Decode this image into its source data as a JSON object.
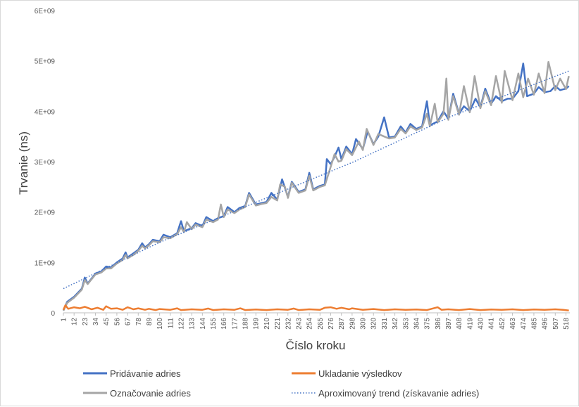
{
  "chart_data": {
    "type": "line",
    "title": "",
    "xlabel": "Číslo kroku",
    "ylabel": "Trvanie (ns)",
    "xlim": [
      1,
      522
    ],
    "ylim": [
      0,
      6000000000
    ],
    "grid": false,
    "legend_position": "bottom",
    "y_ticks": [
      {
        "value": 0,
        "label": "0"
      },
      {
        "value": 1000000000,
        "label": "1E+09"
      },
      {
        "value": 2000000000,
        "label": "2E+09"
      },
      {
        "value": 3000000000,
        "label": "3E+09"
      },
      {
        "value": 4000000000,
        "label": "4E+09"
      },
      {
        "value": 5000000000,
        "label": "5E+09"
      },
      {
        "value": 6000000000,
        "label": "6E+09"
      }
    ],
    "x_ticks": [
      "1",
      "12",
      "23",
      "34",
      "45",
      "56",
      "67",
      "78",
      "89",
      "100",
      "111",
      "122",
      "133",
      "144",
      "155",
      "166",
      "177",
      "188",
      "199",
      "210",
      "221",
      "232",
      "243",
      "254",
      "265",
      "276",
      "287",
      "298",
      "309",
      "320",
      "331",
      "342",
      "353",
      "364",
      "375",
      "386",
      "397",
      "408",
      "419",
      "430",
      "441",
      "452",
      "463",
      "474",
      "485",
      "496",
      "507",
      "518"
    ],
    "series": [
      {
        "name": "Pridávanie adries",
        "color": "#4472C4",
        "style": "solid",
        "points": [
          [
            1,
            50000000
          ],
          [
            5,
            220000000
          ],
          [
            12,
            320000000
          ],
          [
            20,
            480000000
          ],
          [
            23,
            700000000
          ],
          [
            26,
            580000000
          ],
          [
            34,
            780000000
          ],
          [
            40,
            820000000
          ],
          [
            45,
            920000000
          ],
          [
            50,
            900000000
          ],
          [
            56,
            1000000000
          ],
          [
            62,
            1080000000
          ],
          [
            65,
            1200000000
          ],
          [
            67,
            1100000000
          ],
          [
            73,
            1180000000
          ],
          [
            78,
            1250000000
          ],
          [
            82,
            1380000000
          ],
          [
            85,
            1300000000
          ],
          [
            89,
            1360000000
          ],
          [
            93,
            1450000000
          ],
          [
            100,
            1420000000
          ],
          [
            104,
            1550000000
          ],
          [
            111,
            1500000000
          ],
          [
            118,
            1580000000
          ],
          [
            122,
            1820000000
          ],
          [
            125,
            1620000000
          ],
          [
            133,
            1680000000
          ],
          [
            137,
            1780000000
          ],
          [
            144,
            1720000000
          ],
          [
            148,
            1900000000
          ],
          [
            155,
            1820000000
          ],
          [
            160,
            1880000000
          ],
          [
            166,
            1920000000
          ],
          [
            170,
            2100000000
          ],
          [
            177,
            2000000000
          ],
          [
            182,
            2080000000
          ],
          [
            188,
            2120000000
          ],
          [
            192,
            2380000000
          ],
          [
            199,
            2150000000
          ],
          [
            205,
            2180000000
          ],
          [
            210,
            2200000000
          ],
          [
            215,
            2380000000
          ],
          [
            221,
            2250000000
          ],
          [
            226,
            2650000000
          ],
          [
            232,
            2300000000
          ],
          [
            236,
            2600000000
          ],
          [
            243,
            2400000000
          ],
          [
            250,
            2450000000
          ],
          [
            254,
            2780000000
          ],
          [
            258,
            2450000000
          ],
          [
            265,
            2520000000
          ],
          [
            270,
            2550000000
          ],
          [
            272,
            3050000000
          ],
          [
            276,
            2950000000
          ],
          [
            280,
            3100000000
          ],
          [
            284,
            3280000000
          ],
          [
            287,
            3050000000
          ],
          [
            292,
            3300000000
          ],
          [
            298,
            3150000000
          ],
          [
            302,
            3450000000
          ],
          [
            309,
            3250000000
          ],
          [
            314,
            3600000000
          ],
          [
            320,
            3350000000
          ],
          [
            325,
            3500000000
          ],
          [
            331,
            3880000000
          ],
          [
            336,
            3480000000
          ],
          [
            342,
            3500000000
          ],
          [
            348,
            3700000000
          ],
          [
            353,
            3580000000
          ],
          [
            358,
            3750000000
          ],
          [
            364,
            3650000000
          ],
          [
            370,
            3700000000
          ],
          [
            375,
            4200000000
          ],
          [
            378,
            3720000000
          ],
          [
            386,
            3800000000
          ],
          [
            392,
            4000000000
          ],
          [
            397,
            3850000000
          ],
          [
            402,
            4350000000
          ],
          [
            408,
            3950000000
          ],
          [
            413,
            4100000000
          ],
          [
            419,
            4000000000
          ],
          [
            425,
            4250000000
          ],
          [
            430,
            4080000000
          ],
          [
            435,
            4450000000
          ],
          [
            441,
            4150000000
          ],
          [
            446,
            4300000000
          ],
          [
            452,
            4200000000
          ],
          [
            458,
            4250000000
          ],
          [
            463,
            4250000000
          ],
          [
            469,
            4400000000
          ],
          [
            474,
            4950000000
          ],
          [
            478,
            4300000000
          ],
          [
            485,
            4350000000
          ],
          [
            490,
            4480000000
          ],
          [
            496,
            4380000000
          ],
          [
            502,
            4400000000
          ],
          [
            507,
            4500000000
          ],
          [
            512,
            4420000000
          ],
          [
            518,
            4450000000
          ],
          [
            521,
            4500000000
          ]
        ]
      },
      {
        "name": "Ukladanie výsledkov",
        "color": "#ED7D31",
        "style": "solid",
        "points": [
          [
            1,
            60000000
          ],
          [
            3,
            150000000
          ],
          [
            6,
            80000000
          ],
          [
            12,
            110000000
          ],
          [
            18,
            90000000
          ],
          [
            23,
            120000000
          ],
          [
            30,
            70000000
          ],
          [
            36,
            100000000
          ],
          [
            42,
            60000000
          ],
          [
            45,
            130000000
          ],
          [
            50,
            80000000
          ],
          [
            56,
            90000000
          ],
          [
            62,
            60000000
          ],
          [
            67,
            110000000
          ],
          [
            73,
            70000000
          ],
          [
            78,
            90000000
          ],
          [
            85,
            60000000
          ],
          [
            89,
            80000000
          ],
          [
            96,
            55000000
          ],
          [
            100,
            75000000
          ],
          [
            111,
            60000000
          ],
          [
            118,
            90000000
          ],
          [
            122,
            55000000
          ],
          [
            133,
            70000000
          ],
          [
            144,
            60000000
          ],
          [
            150,
            85000000
          ],
          [
            155,
            55000000
          ],
          [
            166,
            70000000
          ],
          [
            177,
            60000000
          ],
          [
            183,
            90000000
          ],
          [
            188,
            55000000
          ],
          [
            199,
            65000000
          ],
          [
            210,
            55000000
          ],
          [
            221,
            70000000
          ],
          [
            232,
            60000000
          ],
          [
            238,
            85000000
          ],
          [
            243,
            55000000
          ],
          [
            254,
            70000000
          ],
          [
            265,
            60000000
          ],
          [
            270,
            100000000
          ],
          [
            276,
            110000000
          ],
          [
            282,
            80000000
          ],
          [
            287,
            100000000
          ],
          [
            295,
            70000000
          ],
          [
            298,
            90000000
          ],
          [
            309,
            60000000
          ],
          [
            320,
            75000000
          ],
          [
            331,
            55000000
          ],
          [
            342,
            70000000
          ],
          [
            353,
            60000000
          ],
          [
            364,
            65000000
          ],
          [
            375,
            55000000
          ],
          [
            386,
            110000000
          ],
          [
            390,
            60000000
          ],
          [
            397,
            70000000
          ],
          [
            408,
            55000000
          ],
          [
            419,
            75000000
          ],
          [
            430,
            55000000
          ],
          [
            441,
            65000000
          ],
          [
            452,
            60000000
          ],
          [
            463,
            70000000
          ],
          [
            474,
            55000000
          ],
          [
            485,
            65000000
          ],
          [
            496,
            60000000
          ],
          [
            507,
            70000000
          ],
          [
            515,
            60000000
          ],
          [
            521,
            45000000
          ]
        ]
      },
      {
        "name": "Označovanie adries",
        "color": "#A5A5A5",
        "style": "solid",
        "points": [
          [
            1,
            40000000
          ],
          [
            5,
            200000000
          ],
          [
            12,
            300000000
          ],
          [
            20,
            460000000
          ],
          [
            23,
            650000000
          ],
          [
            26,
            570000000
          ],
          [
            34,
            760000000
          ],
          [
            40,
            800000000
          ],
          [
            45,
            880000000
          ],
          [
            50,
            880000000
          ],
          [
            56,
            980000000
          ],
          [
            62,
            1050000000
          ],
          [
            65,
            1150000000
          ],
          [
            67,
            1080000000
          ],
          [
            73,
            1150000000
          ],
          [
            78,
            1230000000
          ],
          [
            82,
            1330000000
          ],
          [
            85,
            1280000000
          ],
          [
            89,
            1340000000
          ],
          [
            93,
            1420000000
          ],
          [
            100,
            1400000000
          ],
          [
            104,
            1500000000
          ],
          [
            111,
            1480000000
          ],
          [
            118,
            1560000000
          ],
          [
            122,
            1700000000
          ],
          [
            125,
            1600000000
          ],
          [
            128,
            1800000000
          ],
          [
            133,
            1660000000
          ],
          [
            137,
            1750000000
          ],
          [
            144,
            1700000000
          ],
          [
            148,
            1850000000
          ],
          [
            155,
            1800000000
          ],
          [
            160,
            1850000000
          ],
          [
            163,
            2150000000
          ],
          [
            166,
            1900000000
          ],
          [
            170,
            2050000000
          ],
          [
            177,
            1980000000
          ],
          [
            182,
            2050000000
          ],
          [
            188,
            2100000000
          ],
          [
            192,
            2350000000
          ],
          [
            199,
            2130000000
          ],
          [
            205,
            2160000000
          ],
          [
            210,
            2180000000
          ],
          [
            215,
            2300000000
          ],
          [
            221,
            2230000000
          ],
          [
            224,
            2550000000
          ],
          [
            229,
            2500000000
          ],
          [
            232,
            2280000000
          ],
          [
            236,
            2580000000
          ],
          [
            243,
            2380000000
          ],
          [
            250,
            2430000000
          ],
          [
            254,
            2720000000
          ],
          [
            258,
            2430000000
          ],
          [
            265,
            2500000000
          ],
          [
            270,
            2530000000
          ],
          [
            276,
            2900000000
          ],
          [
            280,
            3150000000
          ],
          [
            284,
            3000000000
          ],
          [
            287,
            3020000000
          ],
          [
            292,
            3250000000
          ],
          [
            298,
            3130000000
          ],
          [
            305,
            3400000000
          ],
          [
            309,
            3230000000
          ],
          [
            313,
            3650000000
          ],
          [
            320,
            3330000000
          ],
          [
            325,
            3550000000
          ],
          [
            331,
            3500000000
          ],
          [
            336,
            3460000000
          ],
          [
            342,
            3480000000
          ],
          [
            348,
            3650000000
          ],
          [
            353,
            3560000000
          ],
          [
            358,
            3700000000
          ],
          [
            364,
            3630000000
          ],
          [
            370,
            3680000000
          ],
          [
            375,
            3950000000
          ],
          [
            378,
            3700000000
          ],
          [
            383,
            4150000000
          ],
          [
            386,
            3780000000
          ],
          [
            392,
            3950000000
          ],
          [
            395,
            4650000000
          ],
          [
            397,
            3830000000
          ],
          [
            402,
            4300000000
          ],
          [
            408,
            3930000000
          ],
          [
            413,
            4500000000
          ],
          [
            419,
            3980000000
          ],
          [
            424,
            4700000000
          ],
          [
            430,
            4060000000
          ],
          [
            435,
            4400000000
          ],
          [
            441,
            4120000000
          ],
          [
            446,
            4700000000
          ],
          [
            452,
            4170000000
          ],
          [
            455,
            4800000000
          ],
          [
            463,
            4220000000
          ],
          [
            469,
            4750000000
          ],
          [
            474,
            4280000000
          ],
          [
            479,
            4650000000
          ],
          [
            485,
            4330000000
          ],
          [
            490,
            4750000000
          ],
          [
            496,
            4360000000
          ],
          [
            500,
            4980000000
          ],
          [
            507,
            4420000000
          ],
          [
            512,
            4650000000
          ],
          [
            518,
            4440000000
          ],
          [
            521,
            4700000000
          ]
        ]
      },
      {
        "name": "Aproximovaný trend (získavanie adries)",
        "color": "#4472C4",
        "style": "dotted",
        "points": [
          [
            1,
            480000000
          ],
          [
            100,
            1400000000
          ],
          [
            200,
            2200000000
          ],
          [
            300,
            3000000000
          ],
          [
            400,
            3900000000
          ],
          [
            521,
            4800000000
          ]
        ]
      }
    ]
  }
}
